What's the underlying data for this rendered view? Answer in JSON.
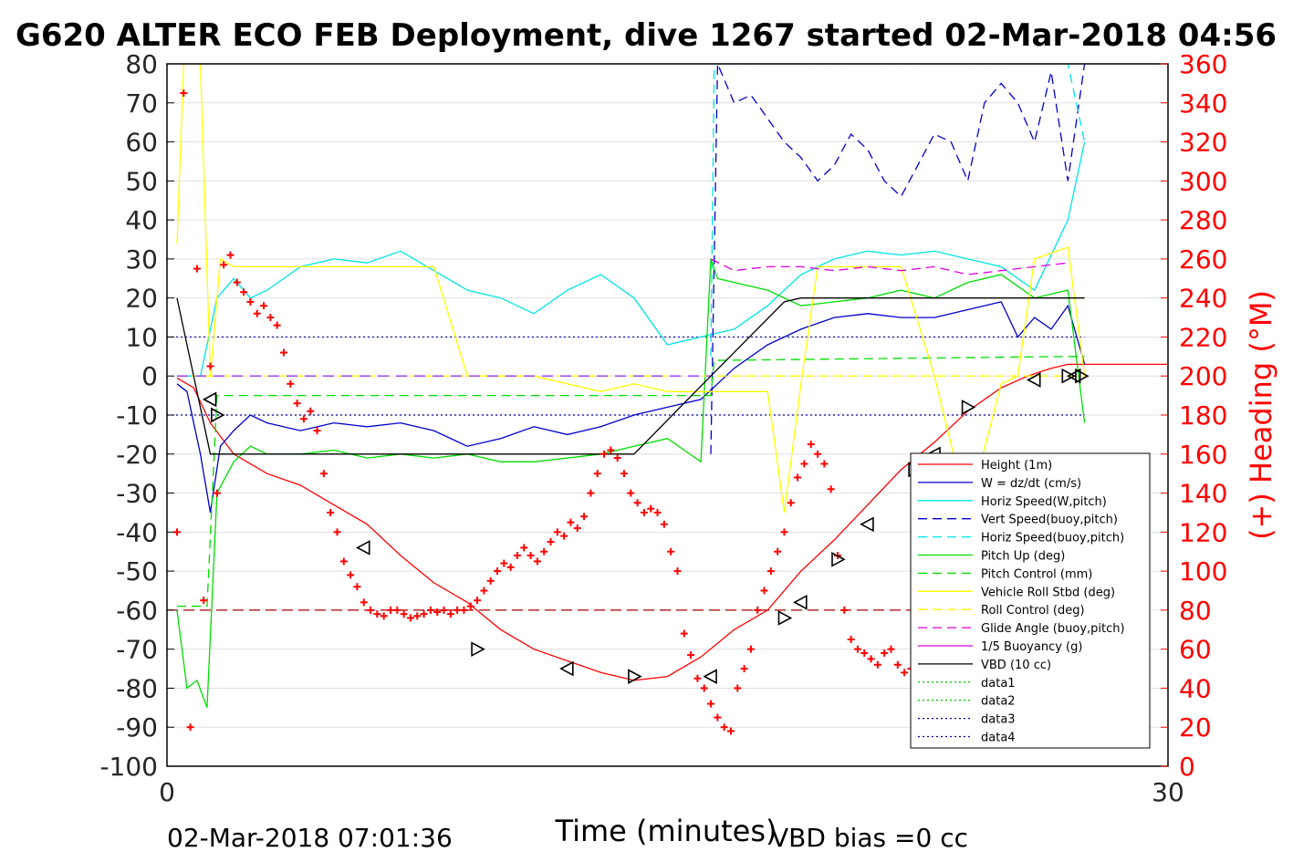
{
  "chart_data": {
    "type": "line",
    "title": "G620 ALTER ECO FEB Deployment, dive 1267 started 02-Mar-2018 04:56",
    "xlabel": "Time (minutes)",
    "ylabel": "",
    "y2label": "(+) Heading (°M)",
    "xlim": [
      0,
      30
    ],
    "ylim": [
      -100,
      80
    ],
    "y2lim": [
      0,
      360
    ],
    "xticks": [
      "0",
      "30"
    ],
    "yticks": [
      "80",
      "70",
      "60",
      "50",
      "40",
      "30",
      "20",
      "10",
      "0",
      "-10",
      "-20",
      "-30",
      "-40",
      "-50",
      "-60",
      "-70",
      "-80",
      "-90",
      "-100"
    ],
    "y2ticks": [
      "360",
      "340",
      "320",
      "300",
      "280",
      "260",
      "240",
      "220",
      "200",
      "180",
      "160",
      "140",
      "120",
      "100",
      "80",
      "60",
      "40",
      "20",
      "0"
    ],
    "grid": true,
    "legend_position": "bottom-right",
    "footer_left": "02-Mar-2018 07:01:36",
    "footer_right": "VBD bias =0 cc",
    "colors": {
      "height": "#ff0000",
      "w": "#0000cc",
      "horiz_w": "#00e5e5",
      "vert_buoy": "#0000cc",
      "horiz_buoy": "#00e5e5",
      "pitch": "#00dd00",
      "pitch_ctrl": "#00dd00",
      "roll": "#ffff00",
      "roll_ctrl": "#ffff00",
      "glide": "#dd00dd",
      "buoyancy": "#dd00dd",
      "vbd": "#000000",
      "heading": "#ff0000",
      "ref_line": "#aa0000",
      "violet_line": "#9933ff"
    },
    "legend": [
      {
        "label": "Height (1m)",
        "color": "#ff0000",
        "dash": ""
      },
      {
        "label": "W = dz/dt (cm/s)",
        "color": "#0000cc",
        "dash": ""
      },
      {
        "label": "Horiz Speed(W,pitch)",
        "color": "#00e5e5",
        "dash": ""
      },
      {
        "label": "Vert Speed(buoy,pitch)",
        "color": "#0000cc",
        "dash": "10,6"
      },
      {
        "label": "Horiz Speed(buoy,pitch)",
        "color": "#00e5e5",
        "dash": "10,6"
      },
      {
        "label": "Pitch Up (deg)",
        "color": "#00dd00",
        "dash": ""
      },
      {
        "label": "Pitch Control (mm)",
        "color": "#00dd00",
        "dash": "10,6"
      },
      {
        "label": "Vehicle Roll Stbd (deg)",
        "color": "#ffff00",
        "dash": ""
      },
      {
        "label": "Roll Control (deg)",
        "color": "#ffff00",
        "dash": "10,6"
      },
      {
        "label": "Glide Angle (buoy,pitch)",
        "color": "#dd00dd",
        "dash": "10,6"
      },
      {
        "label": "1/5 Buoyancy (g)",
        "color": "#dd00dd",
        "dash": ""
      },
      {
        "label": "VBD (10 cc)",
        "color": "#000000",
        "dash": ""
      },
      {
        "label": "data1",
        "color": "#00cc00",
        "dash": "2,3"
      },
      {
        "label": "data2",
        "color": "#00cc00",
        "dash": "2,3"
      },
      {
        "label": "data3",
        "color": "#0000aa",
        "dash": "2,3"
      },
      {
        "label": "data4",
        "color": "#0000aa",
        "dash": "2,3"
      }
    ],
    "ref_lines": [
      {
        "axis": "left",
        "y": 10,
        "color": "#0000aa",
        "dash": "2,3"
      },
      {
        "axis": "left",
        "y": -10,
        "color": "#0000aa",
        "dash": "2,3"
      },
      {
        "axis": "right",
        "y": 80,
        "color": "#aa0000",
        "dash": "12,6"
      }
    ],
    "series": [
      {
        "name": "Height (1m)",
        "color": "#ff0000",
        "dash": "",
        "axis": "left",
        "x": [
          0.3,
          0.8,
          1.3,
          2.0,
          3.0,
          4.0,
          5.0,
          6.0,
          7.0,
          8.0,
          9.0,
          10.0,
          11.0,
          12.0,
          13.0,
          14.0,
          15.0,
          16.0,
          17.0,
          18.0,
          19.0,
          20.0,
          21.0,
          22.0,
          23.0,
          24.0,
          25.0,
          25.8,
          26.5,
          27.0,
          28.4,
          30.0
        ],
        "y": [
          -0.5,
          -3,
          -12,
          -20,
          -25,
          -28,
          -33,
          -38,
          -46,
          -53,
          -58,
          -65,
          -70,
          -73,
          -76,
          -78,
          -77,
          -72,
          -65,
          -60,
          -50,
          -42,
          -33,
          -24,
          -17,
          -9,
          -3,
          0,
          2,
          3,
          3,
          3
        ]
      },
      {
        "name": "W = dz/dt (cm/s)",
        "color": "#0000cc",
        "dash": "",
        "axis": "left",
        "x": [
          0.3,
          0.6,
          1.0,
          1.3,
          1.6,
          2.0,
          2.5,
          3.0,
          4.0,
          5.0,
          6.0,
          7.0,
          8.0,
          9.0,
          10.0,
          11.0,
          12.0,
          13.0,
          14.0,
          15.0,
          16.0,
          17.0,
          18.0,
          19.0,
          20.0,
          21.0,
          22.0,
          23.0,
          24.0,
          25.0,
          25.5,
          26.0,
          26.5,
          27.0,
          27.5
        ],
        "y": [
          -2,
          -4,
          -20,
          -35,
          -18,
          -14,
          -10,
          -12,
          -14,
          -12,
          -13,
          -12,
          -14,
          -18,
          -16,
          -13,
          -15,
          -13,
          -10,
          -8,
          -6,
          2,
          8,
          12,
          15,
          16,
          15,
          15,
          17,
          19,
          10,
          15,
          12,
          18,
          3
        ]
      },
      {
        "name": "Horiz Speed(W,pitch)",
        "color": "#00e5e5",
        "dash": "",
        "axis": "left",
        "x": [
          0.3,
          1.0,
          1.5,
          2.0,
          2.5,
          3.0,
          4.0,
          5.0,
          6.0,
          7.0,
          8.0,
          9.0,
          10.0,
          11.0,
          12.0,
          13.0,
          14.0,
          15.0,
          16.0,
          17.0,
          18.0,
          19.0,
          20.0,
          21.0,
          22.0,
          23.0,
          24.0,
          25.0,
          26.0,
          27.0,
          27.5
        ],
        "y": [
          0,
          0,
          20,
          25,
          20,
          22,
          28,
          30,
          29,
          32,
          27,
          22,
          20,
          16,
          22,
          26,
          20,
          8,
          10,
          12,
          18,
          26,
          30,
          32,
          31,
          32,
          30,
          28,
          22,
          40,
          60
        ]
      },
      {
        "name": "Vert Speed(buoy,pitch)",
        "color": "#0000cc",
        "dash": "10,6",
        "axis": "left",
        "x": [
          16.3,
          16.5,
          17.0,
          17.5,
          18.0,
          18.5,
          19.0,
          19.5,
          20.0,
          20.5,
          21.0,
          21.5,
          22.0,
          22.5,
          23.0,
          23.5,
          24.0,
          24.5,
          25.0,
          25.5,
          26.0,
          26.5,
          27.0,
          27.5
        ],
        "y": [
          -20,
          80,
          70,
          72,
          66,
          60,
          56,
          50,
          54,
          62,
          58,
          50,
          46,
          54,
          62,
          60,
          50,
          70,
          75,
          70,
          60,
          78,
          50,
          80
        ]
      },
      {
        "name": "Horiz Speed(buoy,pitch)",
        "color": "#00e5e5",
        "dash": "10,6",
        "axis": "left",
        "x": [
          16.3,
          16.4,
          27.0,
          27.5
        ],
        "y": [
          5,
          80,
          80,
          60
        ]
      },
      {
        "name": "Pitch Up (deg)",
        "color": "#00dd00",
        "dash": "",
        "axis": "left",
        "x": [
          0.3,
          0.6,
          0.9,
          1.2,
          1.5,
          2.0,
          2.5,
          3.0,
          4.0,
          5.0,
          6.0,
          7.0,
          8.0,
          9.0,
          10.0,
          11.0,
          12.0,
          13.0,
          14.0,
          15.0,
          16.0,
          16.3,
          16.5,
          17.0,
          18.0,
          19.0,
          20.0,
          21.0,
          22.0,
          23.0,
          24.0,
          25.0,
          26.0,
          27.0,
          27.5
        ],
        "y": [
          -60,
          -80,
          -78,
          -85,
          -30,
          -22,
          -18,
          -20,
          -20,
          -19,
          -21,
          -20,
          -21,
          -20,
          -22,
          -22,
          -21,
          -20,
          -18,
          -16,
          -22,
          30,
          25,
          24,
          22,
          18,
          19,
          20,
          22,
          20,
          24,
          26,
          20,
          22,
          -12
        ]
      },
      {
        "name": "Pitch Control (mm)",
        "color": "#00dd00",
        "dash": "10,6",
        "axis": "left",
        "x": [
          0.3,
          1.2,
          1.5,
          16.3,
          16.4,
          27.0,
          27.5
        ],
        "y": [
          -59,
          -59,
          -5,
          -5,
          4,
          5,
          5
        ]
      },
      {
        "name": "Vehicle Roll Stbd (deg)",
        "color": "#ffff00",
        "dash": "",
        "axis": "left",
        "x": [
          0.3,
          0.5,
          1.0,
          1.3,
          1.6,
          2.0,
          3.0,
          4.0,
          5.0,
          6.0,
          7.0,
          8.0,
          9.0,
          10.0,
          11.0,
          12.0,
          13.0,
          14.0,
          15.0,
          16.0,
          17.0,
          18.0,
          18.5,
          19.0,
          19.5,
          20.0,
          21.0,
          22.0,
          23.0,
          24.0,
          25.0,
          25.5,
          26.0,
          27.0,
          27.5
        ],
        "y": [
          34,
          80,
          80,
          0,
          30,
          28,
          28,
          28,
          28,
          28,
          28,
          28,
          0,
          0,
          0,
          -2,
          -4,
          -2,
          -4,
          -4,
          -4,
          -4,
          -35,
          -2,
          28,
          28,
          28,
          28,
          0,
          -35,
          -2,
          0,
          30,
          33,
          0
        ]
      },
      {
        "name": "Roll Control (deg)",
        "color": "#ffff00",
        "dash": "10,6",
        "axis": "left",
        "x": [
          0.3,
          27.5
        ],
        "y": [
          0,
          0
        ]
      },
      {
        "name": "Glide Angle (buoy,pitch)",
        "color": "#dd00dd",
        "dash": "10,6",
        "axis": "left",
        "x": [
          16.3,
          17.0,
          18.0,
          19.0,
          20.0,
          21.0,
          22.0,
          23.0,
          24.0,
          25.0,
          26.0,
          27.0
        ],
        "y": [
          30,
          27,
          28,
          28,
          27,
          28,
          27,
          28,
          26,
          27,
          28,
          29
        ]
      },
      {
        "name": "1/5 Buoyancy (g)",
        "color": "#9933ff",
        "dash": "12,8",
        "axis": "left",
        "x": [
          0.3,
          16.3
        ],
        "y": [
          0,
          0
        ]
      },
      {
        "name": "VBD (10 cc)",
        "color": "#000000",
        "dash": "",
        "axis": "left",
        "x": [
          0.3,
          1.3,
          9.3,
          12.0,
          14.0,
          16.3,
          18.5,
          19.0,
          27.0,
          27.5
        ],
        "y": [
          20,
          -20,
          -20,
          -20,
          -20,
          0,
          19,
          20,
          20,
          20
        ]
      }
    ],
    "heading": {
      "name": "(+) Heading (°M)",
      "color": "#ff0000",
      "axis": "right",
      "x": [
        0.3,
        0.5,
        0.7,
        0.9,
        1.1,
        1.3,
        1.5,
        1.7,
        1.9,
        2.1,
        2.3,
        2.5,
        2.7,
        2.9,
        3.1,
        3.3,
        3.5,
        3.7,
        3.9,
        4.1,
        4.3,
        4.5,
        4.7,
        4.9,
        5.1,
        5.3,
        5.5,
        5.7,
        5.9,
        6.1,
        6.3,
        6.5,
        6.7,
        6.9,
        7.1,
        7.3,
        7.5,
        7.7,
        7.9,
        8.1,
        8.3,
        8.5,
        8.7,
        8.9,
        9.1,
        9.3,
        9.5,
        9.7,
        9.9,
        10.1,
        10.3,
        10.5,
        10.7,
        10.9,
        11.1,
        11.3,
        11.5,
        11.7,
        11.9,
        12.1,
        12.3,
        12.5,
        12.7,
        12.9,
        13.1,
        13.3,
        13.5,
        13.7,
        13.9,
        14.1,
        14.3,
        14.5,
        14.7,
        14.9,
        15.1,
        15.3,
        15.5,
        15.7,
        15.9,
        16.1,
        16.3,
        16.5,
        16.7,
        16.9,
        17.1,
        17.3,
        17.5,
        17.7,
        17.9,
        18.1,
        18.3,
        18.5,
        18.7,
        18.9,
        19.1,
        19.3,
        19.5,
        19.7,
        19.9,
        20.1,
        20.3,
        20.5,
        20.7,
        20.9,
        21.1,
        21.3,
        21.5,
        21.7,
        21.9,
        22.1,
        22.3,
        22.5,
        22.7,
        22.9,
        23.1,
        23.3,
        23.5,
        23.7,
        23.9,
        24.1,
        24.3,
        24.5,
        24.7,
        24.9,
        25.1,
        25.3,
        25.5,
        25.7,
        25.9,
        26.1,
        26.3,
        26.5,
        26.7,
        26.9,
        27.1,
        27.3,
        27.5
      ],
      "y": [
        120,
        345,
        20,
        255,
        85,
        205,
        140,
        257,
        262,
        248,
        243,
        238,
        232,
        236,
        230,
        226,
        212,
        196,
        186,
        178,
        182,
        172,
        150,
        130,
        120,
        105,
        98,
        92,
        84,
        80,
        78,
        77,
        80,
        80,
        78,
        76,
        77,
        78,
        80,
        79,
        80,
        78,
        80,
        80,
        82,
        85,
        90,
        95,
        100,
        104,
        102,
        108,
        112,
        108,
        105,
        110,
        115,
        120,
        118,
        125,
        122,
        128,
        140,
        150,
        160,
        162,
        158,
        150,
        140,
        135,
        130,
        132,
        130,
        124,
        110,
        100,
        68,
        57,
        45,
        40,
        32,
        25,
        20,
        18,
        40,
        50,
        60,
        80,
        90,
        100,
        110,
        120,
        135,
        148,
        155,
        165,
        160,
        155,
        142,
        108,
        80,
        65,
        60,
        58,
        55,
        52,
        58,
        60,
        52,
        48,
        50,
        55,
        60,
        65,
        60,
        48,
        42,
        50,
        60,
        60,
        50,
        45,
        70,
        80,
        90,
        100,
        110,
        120,
        130,
        120,
        110,
        95,
        80,
        60,
        45,
        40,
        30
      ]
    },
    "markers": {
      "axis": "left",
      "x": [
        1.3,
        1.5,
        5.9,
        9.3,
        12.0,
        14.0,
        16.3,
        18.5,
        19.0,
        20.1,
        21.0,
        22.4,
        23.0,
        24.0,
        26.0,
        27.0,
        27.2,
        27.4
      ],
      "y": [
        -6,
        -10,
        -44,
        -70,
        -75,
        -77,
        -77,
        -62,
        -58,
        -47,
        -38,
        -24,
        -20,
        -8,
        -1,
        0,
        0,
        0
      ]
    }
  }
}
